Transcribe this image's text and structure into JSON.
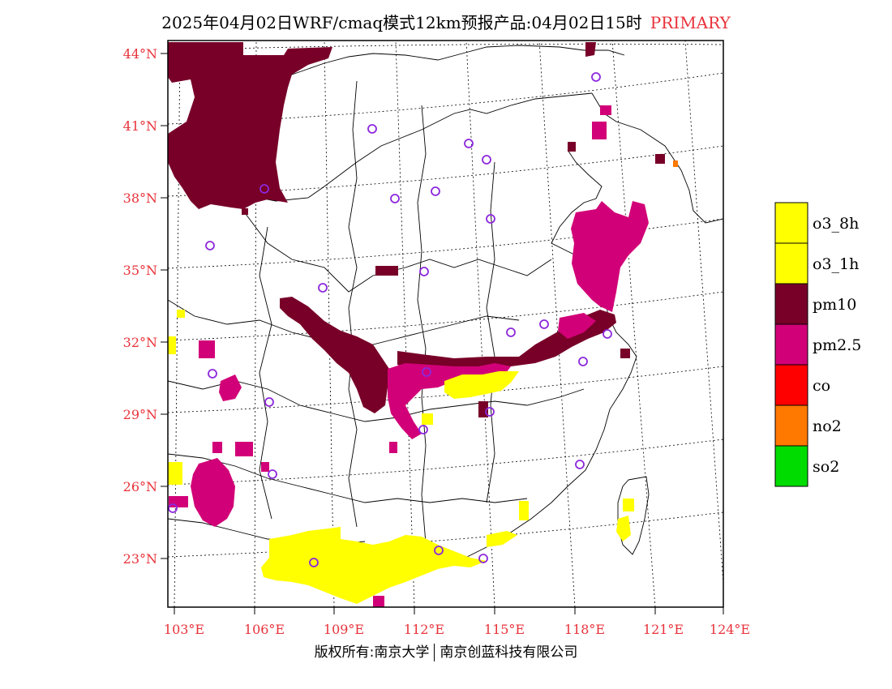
{
  "title": {
    "main": "2025年04月02日WRF/cmaq模式12km预报产品:04月02日15时",
    "tag": "PRIMARY"
  },
  "colors": {
    "o3_8h": "#ffff00",
    "o3_1h": "#ffff00",
    "pm10": "#780028",
    "pm25": "#d20078",
    "co": "#ff0000",
    "no2": "#ff7800",
    "so2": "#00dc00",
    "station": "#8c28dc",
    "axis_label": "#e8323a"
  },
  "axes": {
    "lat_labels": [
      "44°N",
      "41°N",
      "38°N",
      "35°N",
      "32°N",
      "29°N",
      "26°N",
      "23°N"
    ],
    "lon_labels": [
      "103°E",
      "106°E",
      "109°E",
      "112°E",
      "115°E",
      "118°E",
      "121°E",
      "124°E"
    ]
  },
  "legend": [
    {
      "key": "o3_8h",
      "label": "o3_8h"
    },
    {
      "key": "o3_1h",
      "label": "o3_1h"
    },
    {
      "key": "pm10",
      "label": "pm10"
    },
    {
      "key": "pm25",
      "label": "pm2.5"
    },
    {
      "key": "co",
      "label": "co"
    },
    {
      "key": "no2",
      "label": "no2"
    },
    {
      "key": "so2",
      "label": "so2"
    }
  ],
  "copyright": {
    "left": "版权所有:南京大学",
    "right": "南京创蓝科技有限公司"
  }
}
